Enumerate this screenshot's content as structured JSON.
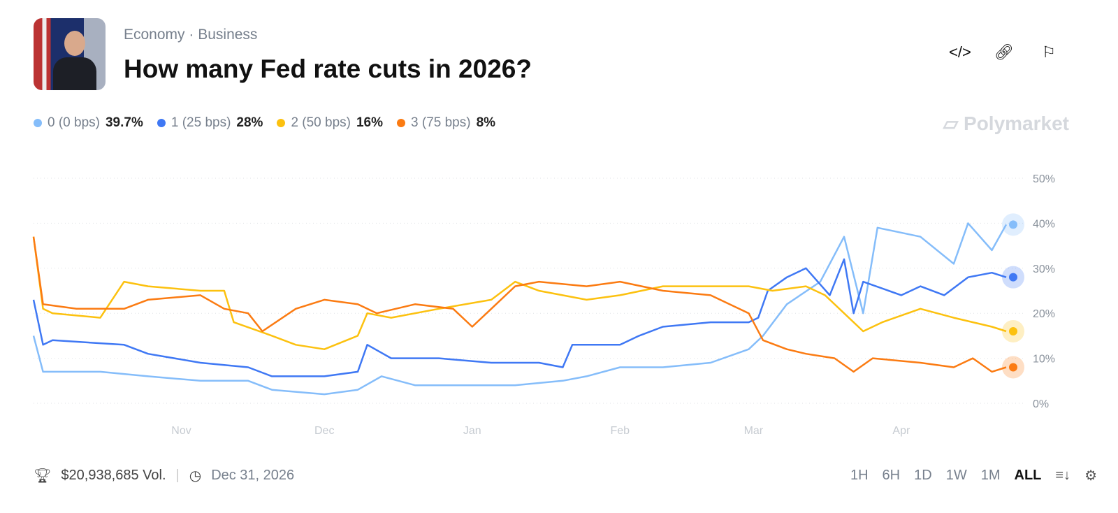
{
  "header": {
    "category": "Economy",
    "subcategory": "Business",
    "title": "How many Fed rate cuts in 2026?",
    "brand": "Polymarket"
  },
  "footer": {
    "volume": "$20,938,685 Vol.",
    "end_date": "Dec 31, 2026",
    "ranges": [
      "1H",
      "6H",
      "1D",
      "1W",
      "1M",
      "ALL"
    ],
    "active_range": "ALL"
  },
  "chart_data": {
    "type": "line",
    "grid": true,
    "legend": "top-left",
    "ylim": [
      0,
      50
    ],
    "yticks": [
      "0%",
      "10%",
      "20%",
      "30%",
      "40%",
      "50%"
    ],
    "xticks": [
      "Nov",
      "Dec",
      "Jan",
      "Feb",
      "Mar",
      "Apr"
    ],
    "xrange": [
      "2025-10-01",
      "2026-04-23"
    ],
    "series": [
      {
        "name": "0 (0 bps)",
        "label": "39.7%",
        "color": "#85bdfa",
        "points": [
          [
            "2025-10-01",
            15
          ],
          [
            "2025-10-03",
            7
          ],
          [
            "2025-10-15",
            7
          ],
          [
            "2025-10-25",
            6
          ],
          [
            "2025-11-05",
            5
          ],
          [
            "2025-11-15",
            5
          ],
          [
            "2025-11-20",
            3
          ],
          [
            "2025-12-01",
            2
          ],
          [
            "2025-12-08",
            3
          ],
          [
            "2025-12-13",
            6
          ],
          [
            "2025-12-20",
            4
          ],
          [
            "2026-01-01",
            4
          ],
          [
            "2026-01-10",
            4
          ],
          [
            "2026-01-20",
            5
          ],
          [
            "2026-01-25",
            6
          ],
          [
            "2026-02-01",
            8
          ],
          [
            "2026-02-10",
            8
          ],
          [
            "2026-02-20",
            9
          ],
          [
            "2026-02-28",
            12
          ],
          [
            "2026-03-03",
            15
          ],
          [
            "2026-03-08",
            22
          ],
          [
            "2026-03-15",
            27
          ],
          [
            "2026-03-20",
            37
          ],
          [
            "2026-03-24",
            20
          ],
          [
            "2026-03-27",
            39
          ],
          [
            "2026-04-05",
            37
          ],
          [
            "2026-04-12",
            31
          ],
          [
            "2026-04-15",
            40
          ],
          [
            "2026-04-20",
            34
          ],
          [
            "2026-04-23",
            39.7
          ]
        ]
      },
      {
        "name": "1 (25 bps)",
        "label": "28%",
        "color": "#3f78f4",
        "points": [
          [
            "2025-10-01",
            23
          ],
          [
            "2025-10-03",
            13
          ],
          [
            "2025-10-05",
            14
          ],
          [
            "2025-10-20",
            13
          ],
          [
            "2025-10-25",
            11
          ],
          [
            "2025-11-05",
            9
          ],
          [
            "2025-11-15",
            8
          ],
          [
            "2025-11-20",
            6
          ],
          [
            "2025-12-01",
            6
          ],
          [
            "2025-12-08",
            7
          ],
          [
            "2025-12-10",
            13
          ],
          [
            "2025-12-15",
            10
          ],
          [
            "2025-12-25",
            10
          ],
          [
            "2026-01-05",
            9
          ],
          [
            "2026-01-15",
            9
          ],
          [
            "2026-01-20",
            8
          ],
          [
            "2026-01-22",
            13
          ],
          [
            "2026-02-01",
            13
          ],
          [
            "2026-02-05",
            15
          ],
          [
            "2026-02-10",
            17
          ],
          [
            "2026-02-20",
            18
          ],
          [
            "2026-02-28",
            18
          ],
          [
            "2026-03-02",
            19
          ],
          [
            "2026-03-04",
            25
          ],
          [
            "2026-03-08",
            28
          ],
          [
            "2026-03-12",
            30
          ],
          [
            "2026-03-17",
            24
          ],
          [
            "2026-03-20",
            32
          ],
          [
            "2026-03-22",
            20
          ],
          [
            "2026-03-24",
            27
          ],
          [
            "2026-04-01",
            24
          ],
          [
            "2026-04-05",
            26
          ],
          [
            "2026-04-10",
            24
          ],
          [
            "2026-04-15",
            28
          ],
          [
            "2026-04-20",
            29
          ],
          [
            "2026-04-23",
            28
          ]
        ]
      },
      {
        "name": "2 (50 bps)",
        "label": "16%",
        "color": "#fcc10f",
        "points": [
          [
            "2025-10-01",
            37
          ],
          [
            "2025-10-03",
            21
          ],
          [
            "2025-10-05",
            20
          ],
          [
            "2025-10-15",
            19
          ],
          [
            "2025-10-20",
            27
          ],
          [
            "2025-10-25",
            26
          ],
          [
            "2025-11-05",
            25
          ],
          [
            "2025-11-10",
            25
          ],
          [
            "2025-11-12",
            18
          ],
          [
            "2025-11-20",
            15
          ],
          [
            "2025-11-25",
            13
          ],
          [
            "2025-12-01",
            12
          ],
          [
            "2025-12-08",
            15
          ],
          [
            "2025-12-10",
            20
          ],
          [
            "2025-12-15",
            19
          ],
          [
            "2025-12-25",
            21
          ],
          [
            "2026-01-05",
            23
          ],
          [
            "2026-01-10",
            27
          ],
          [
            "2026-01-15",
            25
          ],
          [
            "2026-01-25",
            23
          ],
          [
            "2026-02-01",
            24
          ],
          [
            "2026-02-10",
            26
          ],
          [
            "2026-02-20",
            26
          ],
          [
            "2026-02-28",
            26
          ],
          [
            "2026-03-05",
            25
          ],
          [
            "2026-03-12",
            26
          ],
          [
            "2026-03-16",
            24
          ],
          [
            "2026-03-20",
            20
          ],
          [
            "2026-03-24",
            16
          ],
          [
            "2026-03-28",
            18
          ],
          [
            "2026-04-05",
            21
          ],
          [
            "2026-04-12",
            19
          ],
          [
            "2026-04-20",
            17
          ],
          [
            "2026-04-23",
            16
          ]
        ]
      },
      {
        "name": "3 (75 bps)",
        "label": "8%",
        "color": "#fb7b12",
        "points": [
          [
            "2025-10-01",
            37
          ],
          [
            "2025-10-03",
            22
          ],
          [
            "2025-10-10",
            21
          ],
          [
            "2025-10-20",
            21
          ],
          [
            "2025-10-25",
            23
          ],
          [
            "2025-11-05",
            24
          ],
          [
            "2025-11-10",
            21
          ],
          [
            "2025-11-15",
            20
          ],
          [
            "2025-11-18",
            16
          ],
          [
            "2025-11-25",
            21
          ],
          [
            "2025-12-01",
            23
          ],
          [
            "2025-12-08",
            22
          ],
          [
            "2025-12-12",
            20
          ],
          [
            "2025-12-20",
            22
          ],
          [
            "2025-12-28",
            21
          ],
          [
            "2026-01-01",
            17
          ],
          [
            "2026-01-05",
            21
          ],
          [
            "2026-01-10",
            26
          ],
          [
            "2026-01-15",
            27
          ],
          [
            "2026-01-25",
            26
          ],
          [
            "2026-02-01",
            27
          ],
          [
            "2026-02-10",
            25
          ],
          [
            "2026-02-20",
            24
          ],
          [
            "2026-02-28",
            20
          ],
          [
            "2026-03-03",
            14
          ],
          [
            "2026-03-08",
            12
          ],
          [
            "2026-03-12",
            11
          ],
          [
            "2026-03-18",
            10
          ],
          [
            "2026-03-22",
            7
          ],
          [
            "2026-03-26",
            10
          ],
          [
            "2026-04-05",
            9
          ],
          [
            "2026-04-12",
            8
          ],
          [
            "2026-04-16",
            10
          ],
          [
            "2026-04-20",
            7
          ],
          [
            "2026-04-23",
            8
          ]
        ]
      }
    ]
  }
}
